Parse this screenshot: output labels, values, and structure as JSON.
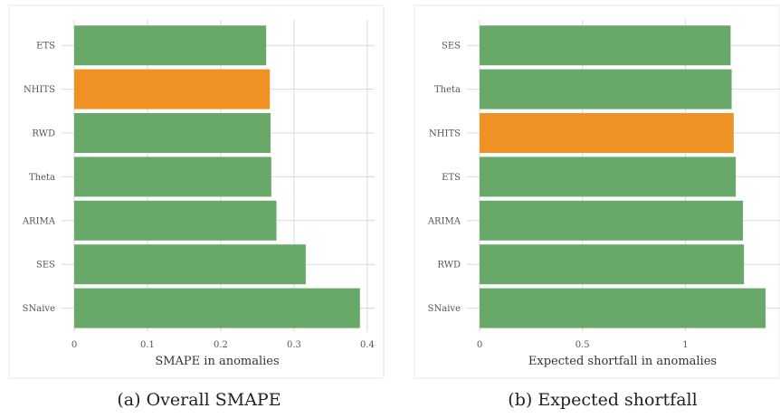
{
  "chart_data": [
    {
      "type": "bar",
      "orientation": "horizontal",
      "title": "",
      "xlabel": "SMAPE in anomalies",
      "ylabel": "",
      "caption": "(a) Overall SMAPE",
      "categories": [
        "ETS",
        "NHITS",
        "RWD",
        "Theta",
        "ARIMA",
        "SES",
        "SNaive"
      ],
      "values": [
        0.262,
        0.267,
        0.268,
        0.269,
        0.276,
        0.316,
        0.39
      ],
      "highlight": "NHITS",
      "xlim": [
        0,
        0.41
      ],
      "xticks": [
        0,
        0.1,
        0.2,
        0.3,
        0.4
      ],
      "xtick_labels": [
        "0",
        "0.1",
        "0.2",
        "0.3",
        "0.4"
      ],
      "grid": true,
      "legend": "none"
    },
    {
      "type": "bar",
      "orientation": "horizontal",
      "title": "",
      "xlabel": "Expected shortfall in anomalies",
      "ylabel": "",
      "caption": "(b) Expected shortfall",
      "categories": [
        "SES",
        "Theta",
        "NHITS",
        "ETS",
        "ARIMA",
        "RWD",
        "SNaive"
      ],
      "values": [
        1.22,
        1.225,
        1.235,
        1.245,
        1.28,
        1.285,
        1.39
      ],
      "highlight": "NHITS",
      "xlim": [
        0,
        1.46
      ],
      "xticks": [
        0,
        0.5,
        1
      ],
      "xtick_labels": [
        "0",
        "0.5",
        "1"
      ],
      "grid": true,
      "legend": "none"
    }
  ],
  "colors": {
    "bar": "#68a96a",
    "highlight": "#ef9223",
    "grid": "#d9d9d9",
    "panel_border": "#e6e6e6"
  }
}
